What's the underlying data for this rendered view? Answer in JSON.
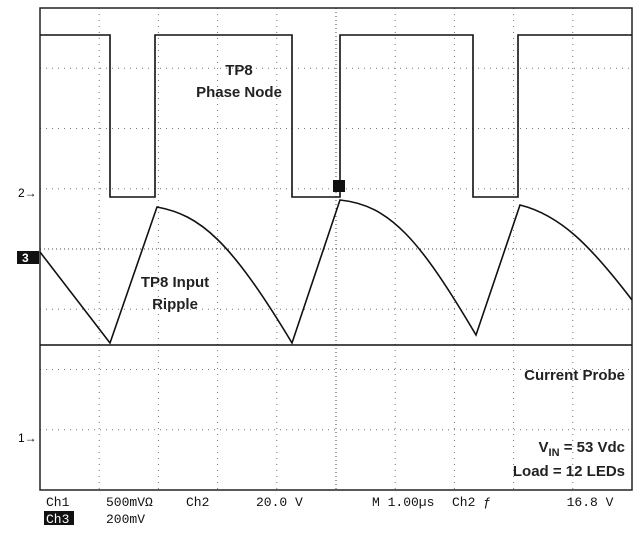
{
  "labels": {
    "phase_title": "TP8",
    "phase_sub": "Phase Node",
    "ripple_title": "TP8 Input",
    "ripple_sub": "Ripple",
    "current": "Current Probe",
    "vin_v": "V",
    "vin_sub": "IN",
    "vin_rest": " = 53 Vdc",
    "load": "Load = 12 LEDs"
  },
  "markers": {
    "ch2": "2→",
    "ch3": "3",
    "ch1": "1→"
  },
  "footer": {
    "row1": [
      "Ch1",
      "500mVΩ",
      "Ch2",
      "20.0 V",
      "M 1.00µs",
      "Ch2 ƒ",
      "16.8 V"
    ],
    "row2": [
      "Ch3",
      "200mV"
    ]
  }
}
